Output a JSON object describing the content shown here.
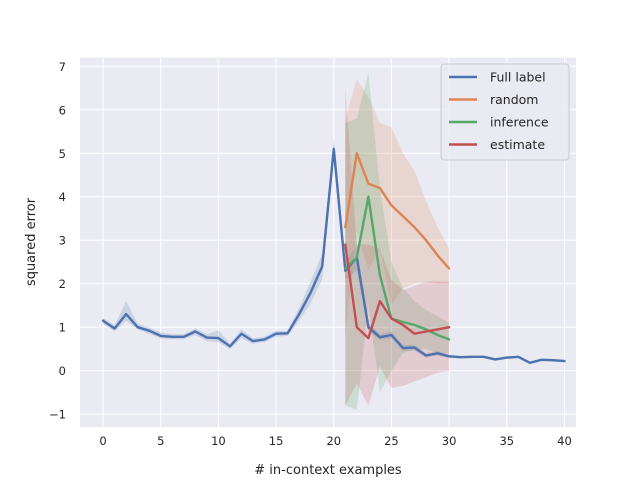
{
  "chart_data": {
    "type": "line",
    "title": "",
    "xlabel": "# in-context examples",
    "ylabel": "squared error",
    "xlim": [
      -2,
      41
    ],
    "ylim": [
      -1.3,
      7.2
    ],
    "xticks": [
      0,
      5,
      10,
      15,
      20,
      25,
      30,
      35,
      40
    ],
    "yticks": [
      -1,
      0,
      1,
      2,
      3,
      4,
      5,
      6,
      7
    ],
    "xtick_labels": [
      "0",
      "5",
      "10",
      "15",
      "20",
      "25",
      "30",
      "35",
      "40"
    ],
    "ytick_labels": [
      "−1",
      "0",
      "1",
      "2",
      "3",
      "4",
      "5",
      "6",
      "7"
    ],
    "grid": true,
    "legend_position": "top-right",
    "series": [
      {
        "name": "Full label",
        "color": "#4c72b0",
        "x": [
          0,
          1,
          2,
          3,
          4,
          5,
          6,
          7,
          8,
          9,
          10,
          11,
          12,
          13,
          14,
          15,
          16,
          17,
          18,
          19,
          20,
          21,
          22,
          23,
          24,
          25,
          26,
          27,
          28,
          29,
          30,
          31,
          32,
          33,
          34,
          35,
          36,
          37,
          38,
          39,
          40
        ],
        "y": [
          1.15,
          0.97,
          1.3,
          1.0,
          0.92,
          0.8,
          0.78,
          0.78,
          0.9,
          0.76,
          0.75,
          0.56,
          0.85,
          0.68,
          0.72,
          0.85,
          0.86,
          1.3,
          1.8,
          2.4,
          5.1,
          2.3,
          2.6,
          1.0,
          0.77,
          0.82,
          0.52,
          0.53,
          0.35,
          0.4,
          0.33,
          0.31,
          0.32,
          0.32,
          0.26,
          0.3,
          0.32,
          0.18,
          0.25,
          0.24,
          0.22
        ],
        "lower": [
          1.08,
          0.9,
          1.15,
          0.95,
          0.85,
          0.74,
          0.72,
          0.72,
          0.82,
          0.68,
          0.65,
          0.5,
          0.75,
          0.62,
          0.66,
          0.78,
          0.8,
          1.15,
          1.55,
          2.1,
          4.85,
          2.1,
          2.3,
          0.9,
          0.7,
          0.74,
          0.45,
          0.46,
          0.3,
          0.35,
          0.29,
          0.28,
          0.29,
          0.29,
          0.23,
          0.27,
          0.29,
          0.16,
          0.22,
          0.21,
          0.19
        ],
        "upper": [
          1.22,
          1.04,
          1.6,
          1.08,
          0.99,
          0.88,
          0.84,
          0.84,
          0.97,
          0.84,
          0.93,
          0.62,
          0.95,
          0.74,
          0.78,
          0.92,
          0.92,
          1.45,
          2.05,
          2.7,
          5.35,
          2.5,
          2.9,
          1.1,
          0.84,
          0.9,
          0.59,
          0.6,
          0.4,
          0.45,
          0.37,
          0.34,
          0.35,
          0.35,
          0.29,
          0.33,
          0.35,
          0.2,
          0.28,
          0.27,
          0.25
        ]
      },
      {
        "name": "random",
        "color": "#dd8452",
        "x": [
          21,
          22,
          23,
          24,
          25,
          26,
          27,
          28,
          29,
          30
        ],
        "y": [
          3.3,
          5.0,
          4.3,
          4.2,
          3.8,
          3.55,
          3.3,
          3.0,
          2.65,
          2.35
        ],
        "lower": [
          0.8,
          3.2,
          2.3,
          2.8,
          1.5,
          1.9,
          2.0,
          2.05,
          2.0,
          2.0
        ],
        "upper": [
          5.8,
          6.7,
          6.3,
          5.7,
          5.6,
          5.0,
          4.6,
          3.9,
          3.3,
          2.8
        ]
      },
      {
        "name": "inference",
        "color": "#55a868",
        "x": [
          21,
          22,
          23,
          24,
          25,
          26,
          27,
          28,
          29,
          30
        ],
        "y": [
          2.35,
          2.6,
          4.0,
          2.2,
          1.2,
          1.12,
          1.05,
          0.95,
          0.82,
          0.72
        ],
        "lower": [
          -0.8,
          -0.9,
          1.5,
          -0.5,
          0.0,
          0.4,
          0.5,
          0.5,
          0.4,
          0.4
        ],
        "upper": [
          5.7,
          5.8,
          6.85,
          4.2,
          2.5,
          1.9,
          1.6,
          1.4,
          1.25,
          1.1
        ]
      },
      {
        "name": "estimate",
        "color": "#c44e52",
        "x": [
          21,
          22,
          23,
          24,
          25,
          26,
          27,
          28,
          29,
          30
        ],
        "y": [
          2.9,
          1.0,
          0.75,
          1.6,
          1.2,
          1.05,
          0.85,
          0.9,
          0.95,
          1.0
        ],
        "lower": [
          -0.8,
          -0.3,
          -0.8,
          0.1,
          -0.4,
          -0.35,
          -0.25,
          -0.15,
          -0.05,
          0.0
        ],
        "upper": [
          6.5,
          2.9,
          2.9,
          2.8,
          2.1,
          1.85,
          1.95,
          2.05,
          2.05,
          2.05
        ]
      }
    ]
  }
}
